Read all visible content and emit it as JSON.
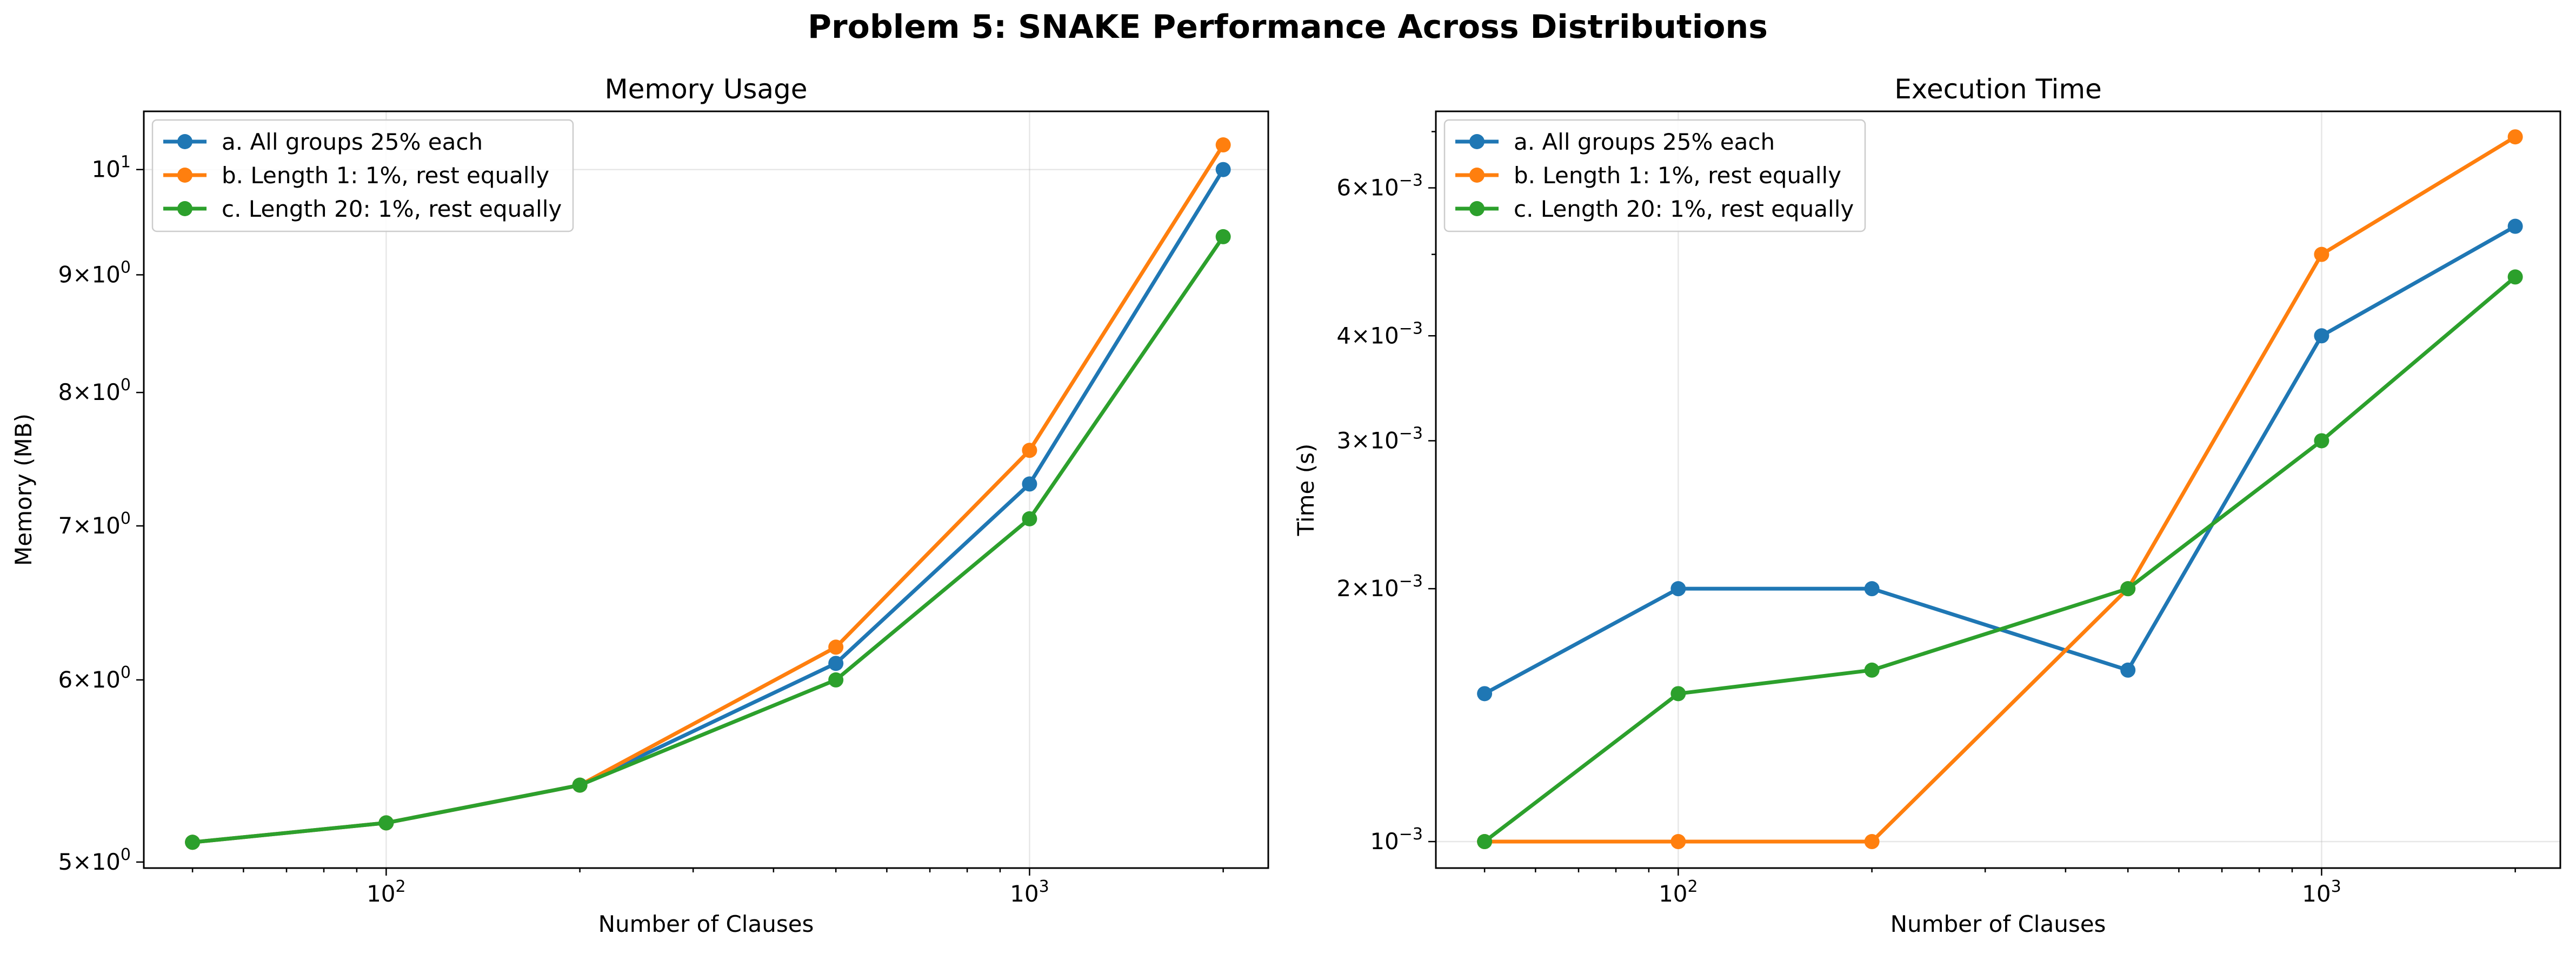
{
  "figure": {
    "title": "Problem 5: SNAKE Performance Across Distributions"
  },
  "chart_data": [
    {
      "type": "line",
      "title": "Memory Usage",
      "xlabel": "Number of Clauses",
      "ylabel": "Memory (MB)",
      "xscale": "log",
      "yscale": "log",
      "grid": true,
      "legend_position": "upper left",
      "x": [
        50,
        100,
        200,
        500,
        1000,
        2000
      ],
      "xlim": [
        42,
        2350
      ],
      "ylim": [
        4.97,
        10.6
      ],
      "x_ticks": [
        {
          "value": 100,
          "base": "10",
          "exp": "2"
        },
        {
          "value": 1000,
          "base": "10",
          "exp": "3"
        }
      ],
      "y_ticks": [
        {
          "value": 5,
          "mantissa": "5",
          "exp": "0"
        },
        {
          "value": 6,
          "mantissa": "6",
          "exp": "0"
        },
        {
          "value": 7,
          "mantissa": "7",
          "exp": "0"
        },
        {
          "value": 8,
          "mantissa": "8",
          "exp": "0"
        },
        {
          "value": 9,
          "mantissa": "9",
          "exp": "0"
        },
        {
          "value": 10,
          "base": "10",
          "exp": "1"
        }
      ],
      "series": [
        {
          "name": "a. All groups 25% each",
          "color": "#1f77b4",
          "values": [
            5.1,
            5.2,
            5.4,
            6.1,
            7.3,
            10.0
          ]
        },
        {
          "name": "b. Length 1: 1%, rest equally",
          "color": "#ff7f0e",
          "values": [
            5.1,
            5.2,
            5.4,
            6.2,
            7.55,
            10.25
          ]
        },
        {
          "name": "c. Length 20: 1%, rest equally",
          "color": "#2ca02c",
          "values": [
            5.1,
            5.2,
            5.4,
            6.0,
            7.05,
            9.35
          ]
        }
      ]
    },
    {
      "type": "line",
      "title": "Execution Time",
      "xlabel": "Number of Clauses",
      "ylabel": "Time (s)",
      "xscale": "log",
      "yscale": "log",
      "grid": true,
      "legend_position": "upper left",
      "x": [
        50,
        100,
        200,
        500,
        1000,
        2000
      ],
      "xlim": [
        42,
        2350
      ],
      "ylim": [
        0.00093,
        0.0074
      ],
      "x_ticks": [
        {
          "value": 100,
          "base": "10",
          "exp": "2"
        },
        {
          "value": 1000,
          "base": "10",
          "exp": "3"
        }
      ],
      "y_ticks": [
        {
          "value": 0.001,
          "base": "10",
          "exp": "−3"
        },
        {
          "value": 0.002,
          "mantissa": "2",
          "exp": "−3"
        },
        {
          "value": 0.003,
          "mantissa": "3",
          "exp": "−3"
        },
        {
          "value": 0.004,
          "mantissa": "4",
          "exp": "−3"
        },
        {
          "value": 0.006,
          "mantissa": "6",
          "exp": "−3"
        }
      ],
      "series": [
        {
          "name": "a. All groups 25% each",
          "color": "#1f77b4",
          "values": [
            0.0015,
            0.002,
            0.002,
            0.0016,
            0.004,
            0.0054
          ]
        },
        {
          "name": "b. Length 1: 1%, rest equally",
          "color": "#ff7f0e",
          "values": [
            0.001,
            0.001,
            0.001,
            0.002,
            0.005,
            0.0069
          ]
        },
        {
          "name": "c. Length 20: 1%, rest equally",
          "color": "#2ca02c",
          "values": [
            0.001,
            0.0015,
            0.0016,
            0.002,
            0.003,
            0.0047
          ]
        }
      ]
    }
  ]
}
